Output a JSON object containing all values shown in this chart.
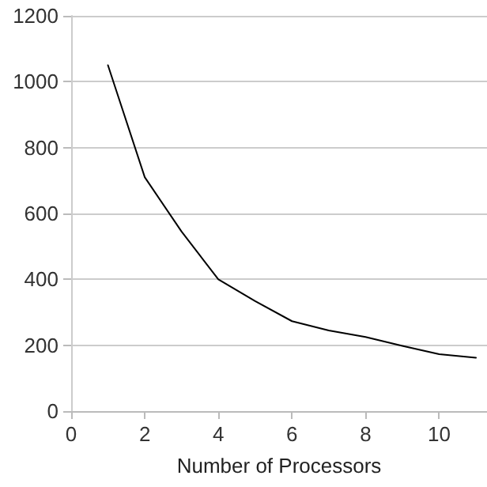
{
  "chart_data": {
    "type": "line",
    "xlabel": "Number of Processors",
    "x": [
      1,
      2,
      3,
      4,
      5,
      6,
      7,
      8,
      9,
      10,
      11
    ],
    "series": [
      {
        "color": "#000000",
        "values": [
          1050,
          710,
          545,
          400,
          334,
          273,
          245,
          225,
          198,
          173,
          162
        ]
      }
    ],
    "xlim": [
      0,
      11.3
    ],
    "xticks": [
      0,
      2,
      4,
      6,
      8,
      10
    ],
    "ylim": [
      0,
      1200
    ],
    "yticks": [
      0,
      200,
      400,
      600,
      800,
      1000,
      1200
    ],
    "grid": "y",
    "marker": "none",
    "line_style": "solid"
  }
}
